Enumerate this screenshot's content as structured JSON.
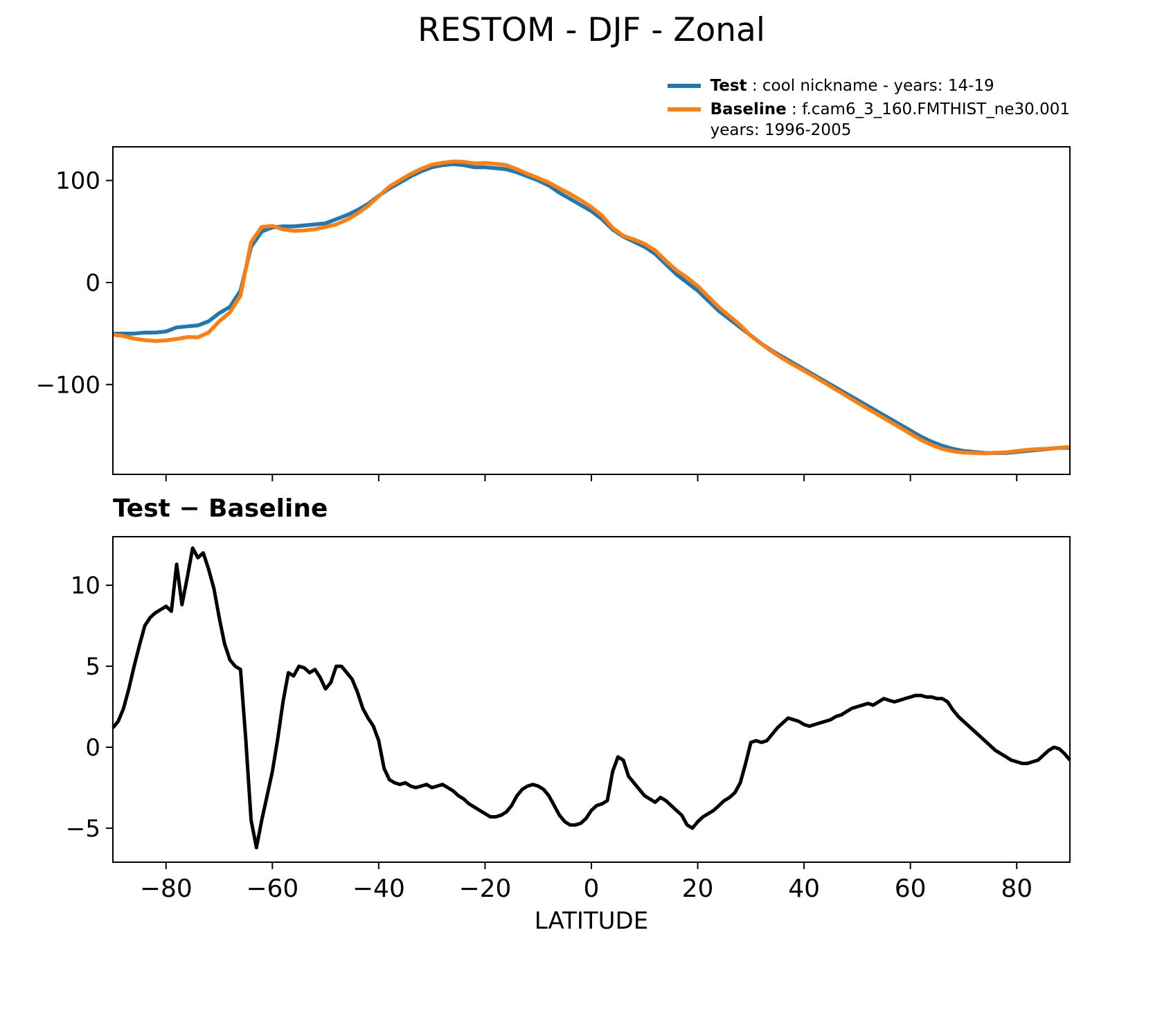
{
  "title": "RESTOM - DJF - Zonal",
  "xlabel": "LATITUDE",
  "colors": {
    "test": "#1f77b4",
    "baseline": "#ff7f0e",
    "diff": "#000000",
    "axis": "#000000",
    "background": "#ffffff"
  },
  "legend": {
    "items": [
      {
        "label": "Test",
        "text": " : cool nickname - years: 14-19",
        "color": "#1f77b4"
      },
      {
        "label": "Baseline",
        "text": " : f.cam6_3_160.FMTHIST_ne30.001",
        "text2": "years: 1996-2005",
        "color": "#ff7f0e"
      }
    ]
  },
  "chart_data": [
    {
      "type": "line",
      "panel": "top",
      "title": "RESTOM - DJF - Zonal",
      "ylabel": "",
      "xlabel": "",
      "xlim": [
        -90,
        90
      ],
      "ylim": [
        -188,
        133
      ],
      "xticks": [
        -80,
        -60,
        -40,
        -20,
        0,
        20,
        40,
        60,
        80
      ],
      "xtick_labels": [],
      "yticks": [
        100,
        0,
        -100
      ],
      "ytick_labels": [
        "100",
        "0",
        "−100"
      ],
      "grid": false,
      "legend_position": "outside upper right",
      "x": [
        -90,
        -88,
        -86,
        -84,
        -82,
        -80,
        -78,
        -76,
        -74,
        -72,
        -70,
        -68,
        -66,
        -64,
        -62,
        -60,
        -58,
        -56,
        -54,
        -52,
        -50,
        -48,
        -46,
        -44,
        -42,
        -40,
        -38,
        -36,
        -34,
        -32,
        -30,
        -28,
        -26,
        -24,
        -22,
        -20,
        -18,
        -16,
        -14,
        -12,
        -10,
        -8,
        -6,
        -4,
        -2,
        0,
        2,
        4,
        6,
        8,
        10,
        12,
        14,
        16,
        18,
        20,
        22,
        24,
        26,
        28,
        30,
        32,
        34,
        36,
        38,
        40,
        42,
        44,
        46,
        48,
        50,
        52,
        54,
        56,
        58,
        60,
        62,
        64,
        66,
        68,
        70,
        72,
        74,
        76,
        78,
        80,
        82,
        84,
        86,
        88,
        90
      ],
      "series": [
        {
          "name": "Test",
          "color": "#1f77b4",
          "values": [
            -50,
            -50,
            -50,
            -49,
            -49,
            -48,
            -44,
            -43,
            -42,
            -38,
            -30,
            -24,
            -8,
            35,
            50,
            54,
            55,
            55,
            56,
            57,
            58,
            62,
            66,
            71,
            77,
            85,
            92,
            98,
            104,
            109,
            113,
            115,
            116,
            115,
            113,
            113,
            112,
            111,
            108,
            104,
            100,
            95,
            88,
            82,
            76,
            70,
            62,
            52,
            45,
            40,
            35,
            28,
            18,
            8,
            0,
            -8,
            -18,
            -28,
            -36,
            -44,
            -52,
            -60,
            -67,
            -73,
            -79,
            -85,
            -91,
            -97,
            -103,
            -109,
            -115,
            -121,
            -127,
            -133,
            -139,
            -145,
            -151,
            -156,
            -160,
            -163,
            -165,
            -166,
            -167,
            -167,
            -167,
            -166,
            -165,
            -164,
            -163,
            -162,
            -162
          ]
        },
        {
          "name": "Baseline",
          "color": "#ff7f0e",
          "values": [
            -51.2,
            -52.4,
            -55,
            -56.5,
            -57.3,
            -56.7,
            -55.3,
            -53.5,
            -53.7,
            -49,
            -38,
            -29.4,
            -12.8,
            39.5,
            54.5,
            55.5,
            52.2,
            50.6,
            51.1,
            52.2,
            54.4,
            57,
            61.4,
            67.6,
            75.2,
            84.6,
            94,
            100.3,
            106.4,
            111.4,
            115.5,
            117.3,
            118.7,
            118.2,
            116.7,
            117.1,
            116.3,
            115,
            111,
            106.4,
            102.4,
            98,
            92.2,
            86.8,
            80.7,
            73.9,
            65.5,
            53.5,
            45.8,
            42.2,
            38,
            31.4,
            21.3,
            11.9,
            4.8,
            -3.4,
            -13.9,
            -24.4,
            -32.9,
            -41.8,
            -52.3,
            -60.3,
            -67.8,
            -74.5,
            -80.7,
            -86.4,
            -92.4,
            -98.6,
            -104.9,
            -111.2,
            -117.5,
            -123.7,
            -129.8,
            -135.9,
            -141.9,
            -148.1,
            -154.2,
            -159.1,
            -163,
            -165.3,
            -166.6,
            -167,
            -167.4,
            -166.8,
            -166.4,
            -165.1,
            -164,
            -163.2,
            -162.8,
            -161.9,
            -161.2
          ]
        }
      ]
    },
    {
      "type": "line",
      "panel": "bottom",
      "title": "Test − Baseline",
      "ylabel": "",
      "xlabel": "LATITUDE",
      "xlim": [
        -90,
        90
      ],
      "ylim": [
        -7.1,
        13
      ],
      "xticks": [
        -80,
        -60,
        -40,
        -20,
        0,
        20,
        40,
        60,
        80
      ],
      "xtick_labels": [
        "−80",
        "−60",
        "−40",
        "−20",
        "0",
        "20",
        "40",
        "60",
        "80"
      ],
      "yticks": [
        10,
        5,
        0,
        -5
      ],
      "ytick_labels": [
        "10",
        "5",
        "0",
        "−5"
      ],
      "grid": false,
      "x": [
        -90,
        -89,
        -88,
        -87,
        -86,
        -85,
        -84,
        -83,
        -82,
        -81,
        -80,
        -79,
        -78,
        -77,
        -76,
        -75,
        -74,
        -73,
        -72,
        -71,
        -70,
        -69,
        -68,
        -67,
        -66,
        -65,
        -64,
        -63,
        -62,
        -61,
        -60,
        -59,
        -58,
        -57,
        -56,
        -55,
        -54,
        -53,
        -52,
        -51,
        -50,
        -49,
        -48,
        -47,
        -46,
        -45,
        -44,
        -43,
        -42,
        -41,
        -40,
        -39,
        -38,
        -37,
        -36,
        -35,
        -34,
        -33,
        -32,
        -31,
        -30,
        -29,
        -28,
        -27,
        -26,
        -25,
        -24,
        -23,
        -22,
        -21,
        -20,
        -19,
        -18,
        -17,
        -16,
        -15,
        -14,
        -13,
        -12,
        -11,
        -10,
        -9,
        -8,
        -7,
        -6,
        -5,
        -4,
        -3,
        -2,
        -1,
        0,
        1,
        2,
        3,
        4,
        5,
        6,
        7,
        8,
        9,
        10,
        11,
        12,
        13,
        14,
        15,
        16,
        17,
        18,
        19,
        20,
        21,
        22,
        23,
        24,
        25,
        26,
        27,
        28,
        29,
        30,
        31,
        32,
        33,
        34,
        35,
        36,
        37,
        38,
        39,
        40,
        41,
        42,
        43,
        44,
        45,
        46,
        47,
        48,
        49,
        50,
        51,
        52,
        53,
        54,
        55,
        56,
        57,
        58,
        59,
        60,
        61,
        62,
        63,
        64,
        65,
        66,
        67,
        68,
        69,
        70,
        71,
        72,
        73,
        74,
        75,
        76,
        77,
        78,
        79,
        80,
        81,
        82,
        83,
        84,
        85,
        86,
        87,
        88,
        89,
        90
      ],
      "series": [
        {
          "name": "Test − Baseline",
          "color": "#000000",
          "values": [
            1.2,
            1.6,
            2.4,
            3.6,
            5,
            6.3,
            7.5,
            8,
            8.3,
            8.5,
            8.7,
            8.4,
            11.3,
            8.8,
            10.5,
            12.3,
            11.7,
            12,
            11,
            9.8,
            8,
            6.4,
            5.4,
            5,
            4.8,
            0.5,
            -4.5,
            -6.2,
            -4.5,
            -3,
            -1.5,
            0.5,
            2.8,
            4.6,
            4.4,
            5,
            4.9,
            4.6,
            4.8,
            4.3,
            3.6,
            4,
            5,
            5,
            4.6,
            4.2,
            3.4,
            2.4,
            1.8,
            1.3,
            0.4,
            -1.3,
            -2,
            -2.2,
            -2.3,
            -2.2,
            -2.4,
            -2.5,
            -2.4,
            -2.3,
            -2.5,
            -2.4,
            -2.3,
            -2.5,
            -2.7,
            -3,
            -3.2,
            -3.5,
            -3.7,
            -3.9,
            -4.1,
            -4.3,
            -4.3,
            -4.2,
            -4,
            -3.6,
            -3,
            -2.6,
            -2.4,
            -2.3,
            -2.4,
            -2.6,
            -3,
            -3.6,
            -4.2,
            -4.6,
            -4.8,
            -4.8,
            -4.7,
            -4.4,
            -3.9,
            -3.6,
            -3.5,
            -3.3,
            -1.5,
            -0.6,
            -0.8,
            -1.8,
            -2.2,
            -2.6,
            -3,
            -3.2,
            -3.4,
            -3.1,
            -3.3,
            -3.6,
            -3.9,
            -4.2,
            -4.8,
            -5,
            -4.6,
            -4.3,
            -4.1,
            -3.9,
            -3.6,
            -3.3,
            -3.1,
            -2.8,
            -2.2,
            -1,
            0.3,
            0.4,
            0.3,
            0.4,
            0.8,
            1.2,
            1.5,
            1.8,
            1.7,
            1.6,
            1.4,
            1.3,
            1.4,
            1.5,
            1.6,
            1.7,
            1.9,
            2,
            2.2,
            2.4,
            2.5,
            2.6,
            2.7,
            2.6,
            2.8,
            3,
            2.9,
            2.8,
            2.9,
            3,
            3.1,
            3.2,
            3.2,
            3.1,
            3.1,
            3,
            3,
            2.8,
            2.3,
            1.9,
            1.6,
            1.3,
            1,
            0.7,
            0.4,
            0.1,
            -0.2,
            -0.4,
            -0.6,
            -0.8,
            -0.9,
            -1,
            -1,
            -0.9,
            -0.8,
            -0.5,
            -0.2,
            0,
            -0.1,
            -0.4,
            -0.8
          ]
        }
      ]
    }
  ]
}
